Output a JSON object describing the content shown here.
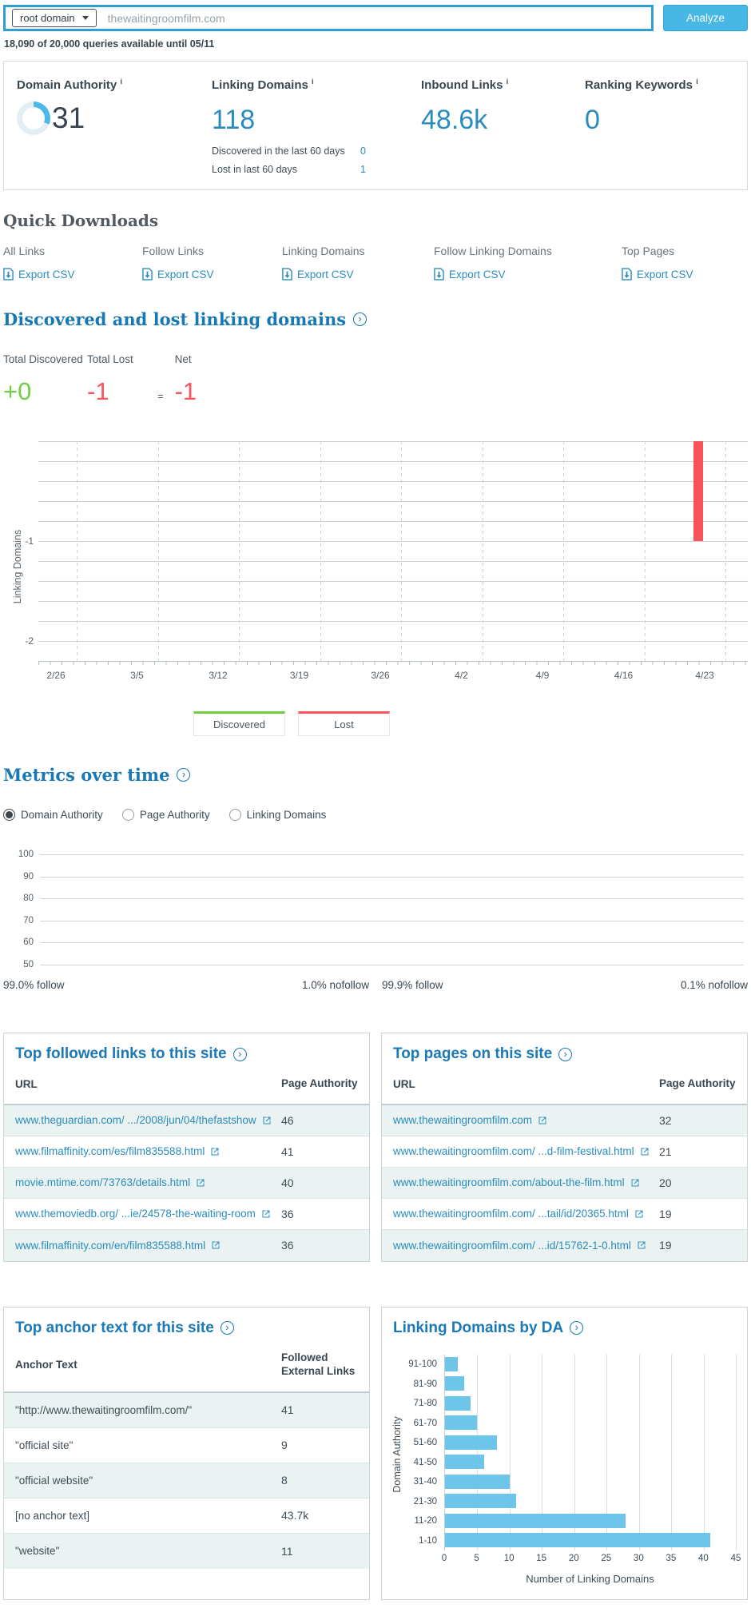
{
  "colors": {
    "accent_blue": "#2a8cbe",
    "heading_blue": "#1878b2",
    "button_blue": "#47b7e6",
    "green": "#6fce43",
    "red": "#f9545b",
    "bar_blue": "#6ec5ea",
    "row_shade": "#eaf3f1",
    "donut_blue": "#4db9e9"
  },
  "search": {
    "scope": "root domain",
    "query": "thewaitingroomfilm.com",
    "analyze_label": "Analyze",
    "quota_note": "18,090 of 20,000 queries available until 05/11"
  },
  "metrics": {
    "info_mark": "i",
    "domain_authority": {
      "label": "Domain Authority",
      "value": "31",
      "percent": 31
    },
    "linking_domains": {
      "label": "Linking Domains",
      "value": "118",
      "discovered_label": "Discovered in the last 60 days",
      "discovered_value": "0",
      "lost_label": "Lost in last 60 days",
      "lost_value": "1"
    },
    "inbound_links": {
      "label": "Inbound Links",
      "value": "48.6k"
    },
    "ranking_keywords": {
      "label": "Ranking Keywords",
      "value": "0"
    }
  },
  "quick_downloads": {
    "title": "Quick Downloads",
    "items": [
      {
        "label": "All Links",
        "action": "Export CSV"
      },
      {
        "label": "Follow Links",
        "action": "Export CSV"
      },
      {
        "label": "Linking Domains",
        "action": "Export CSV"
      },
      {
        "label": "Follow Linking Domains",
        "action": "Export CSV"
      },
      {
        "label": "Top Pages",
        "action": "Export CSV"
      }
    ]
  },
  "discovered_lost": {
    "title": "Discovered and lost linking domains",
    "total_discovered_label": "Total Discovered",
    "total_discovered_value": "+0",
    "total_lost_label": "Total Lost",
    "total_lost_value": "-1",
    "equals": "=",
    "net_label": "Net",
    "net_value": "-1",
    "legend": [
      {
        "label": "Discovered",
        "color": "#6fce43"
      },
      {
        "label": "Lost",
        "color": "#f9545b"
      }
    ]
  },
  "metrics_over_time": {
    "title": "Metrics over time",
    "options": [
      "Domain Authority",
      "Page Authority",
      "Linking Domains"
    ],
    "selected": "Domain Authority"
  },
  "follow_stats": [
    {
      "follow": "99.0% follow",
      "nofollow": "1.0% nofollow"
    },
    {
      "follow": "99.9% follow",
      "nofollow": "0.1% nofollow"
    }
  ],
  "top_followed_links": {
    "title": "Top followed links to this site",
    "columns": [
      "URL",
      "Page Authority"
    ],
    "rows": [
      {
        "url": "www.theguardian.com/ .../2008/jun/04/thefastshow",
        "value": "46"
      },
      {
        "url": "www.filmaffinity.com/es/film835588.html",
        "value": "41"
      },
      {
        "url": "movie.mtime.com/73763/details.html",
        "value": "40"
      },
      {
        "url": "www.themoviedb.org/ ...ie/24578-the-waiting-room",
        "value": "36"
      },
      {
        "url": "www.filmaffinity.com/en/film835588.html",
        "value": "36"
      }
    ]
  },
  "top_pages": {
    "title": "Top pages on this site",
    "columns": [
      "URL",
      "Page Authority"
    ],
    "rows": [
      {
        "url": "www.thewaitingroomfilm.com",
        "value": "32"
      },
      {
        "url": "www.thewaitingroomfilm.com/ ...d-film-festival.html",
        "value": "21"
      },
      {
        "url": "www.thewaitingroomfilm.com/about-the-film.html",
        "value": "20"
      },
      {
        "url": "www.thewaitingroomfilm.com/ ...tail/id/20365.html",
        "value": "19"
      },
      {
        "url": "www.thewaitingroomfilm.com/ ...id/15762-1-0.html",
        "value": "19"
      }
    ]
  },
  "top_anchor_text": {
    "title": "Top anchor text for this site",
    "columns": [
      "Anchor Text",
      "Followed External Links"
    ],
    "rows": [
      {
        "text": "\"http://www.thewaitingroomfilm.com/\"",
        "value": "41"
      },
      {
        "text": "\"official site\"",
        "value": "9"
      },
      {
        "text": "\"official website\"",
        "value": "8"
      },
      {
        "text": "[no anchor text]",
        "value": "43.7k"
      },
      {
        "text": "\"website\"",
        "value": "11"
      }
    ]
  },
  "linking_domains_by_da": {
    "title": "Linking Domains by DA"
  },
  "chart_data": [
    {
      "id": "discovered_lost_timeline",
      "type": "bar",
      "title": "Discovered and lost linking domains",
      "ylabel": "Linking Domains",
      "x_ticks": [
        "2/26",
        "3/5",
        "3/12",
        "3/19",
        "3/26",
        "4/2",
        "4/9",
        "4/16",
        "4/23"
      ],
      "y_ticks": [
        -1,
        -2
      ],
      "ylim": [
        -2.2,
        0
      ],
      "grid": true,
      "series": [
        {
          "name": "Discovered",
          "color": "#6fce43",
          "points": []
        },
        {
          "name": "Lost",
          "color": "#f9545b",
          "points": [
            {
              "x": "4/22",
              "y": -1
            }
          ]
        }
      ]
    },
    {
      "id": "metrics_over_time",
      "type": "line",
      "y_ticks": [
        100,
        90,
        80,
        70,
        60,
        50
      ],
      "grid": true,
      "series": []
    },
    {
      "id": "linking_domains_by_da",
      "type": "bar",
      "orientation": "horizontal",
      "categories": [
        "91-100",
        "81-90",
        "71-80",
        "61-70",
        "51-60",
        "41-50",
        "31-40",
        "21-30",
        "11-20",
        "1-10"
      ],
      "values": [
        2,
        3,
        4,
        5,
        8,
        6,
        10,
        11,
        28,
        41
      ],
      "xlabel": "Number of Linking Domains",
      "ylabel": "Domain Authority",
      "xlim": [
        0,
        45
      ],
      "x_ticks": [
        0,
        5,
        10,
        15,
        20,
        25,
        30,
        35,
        40,
        45
      ],
      "bar_color": "#6ec5ea"
    }
  ]
}
